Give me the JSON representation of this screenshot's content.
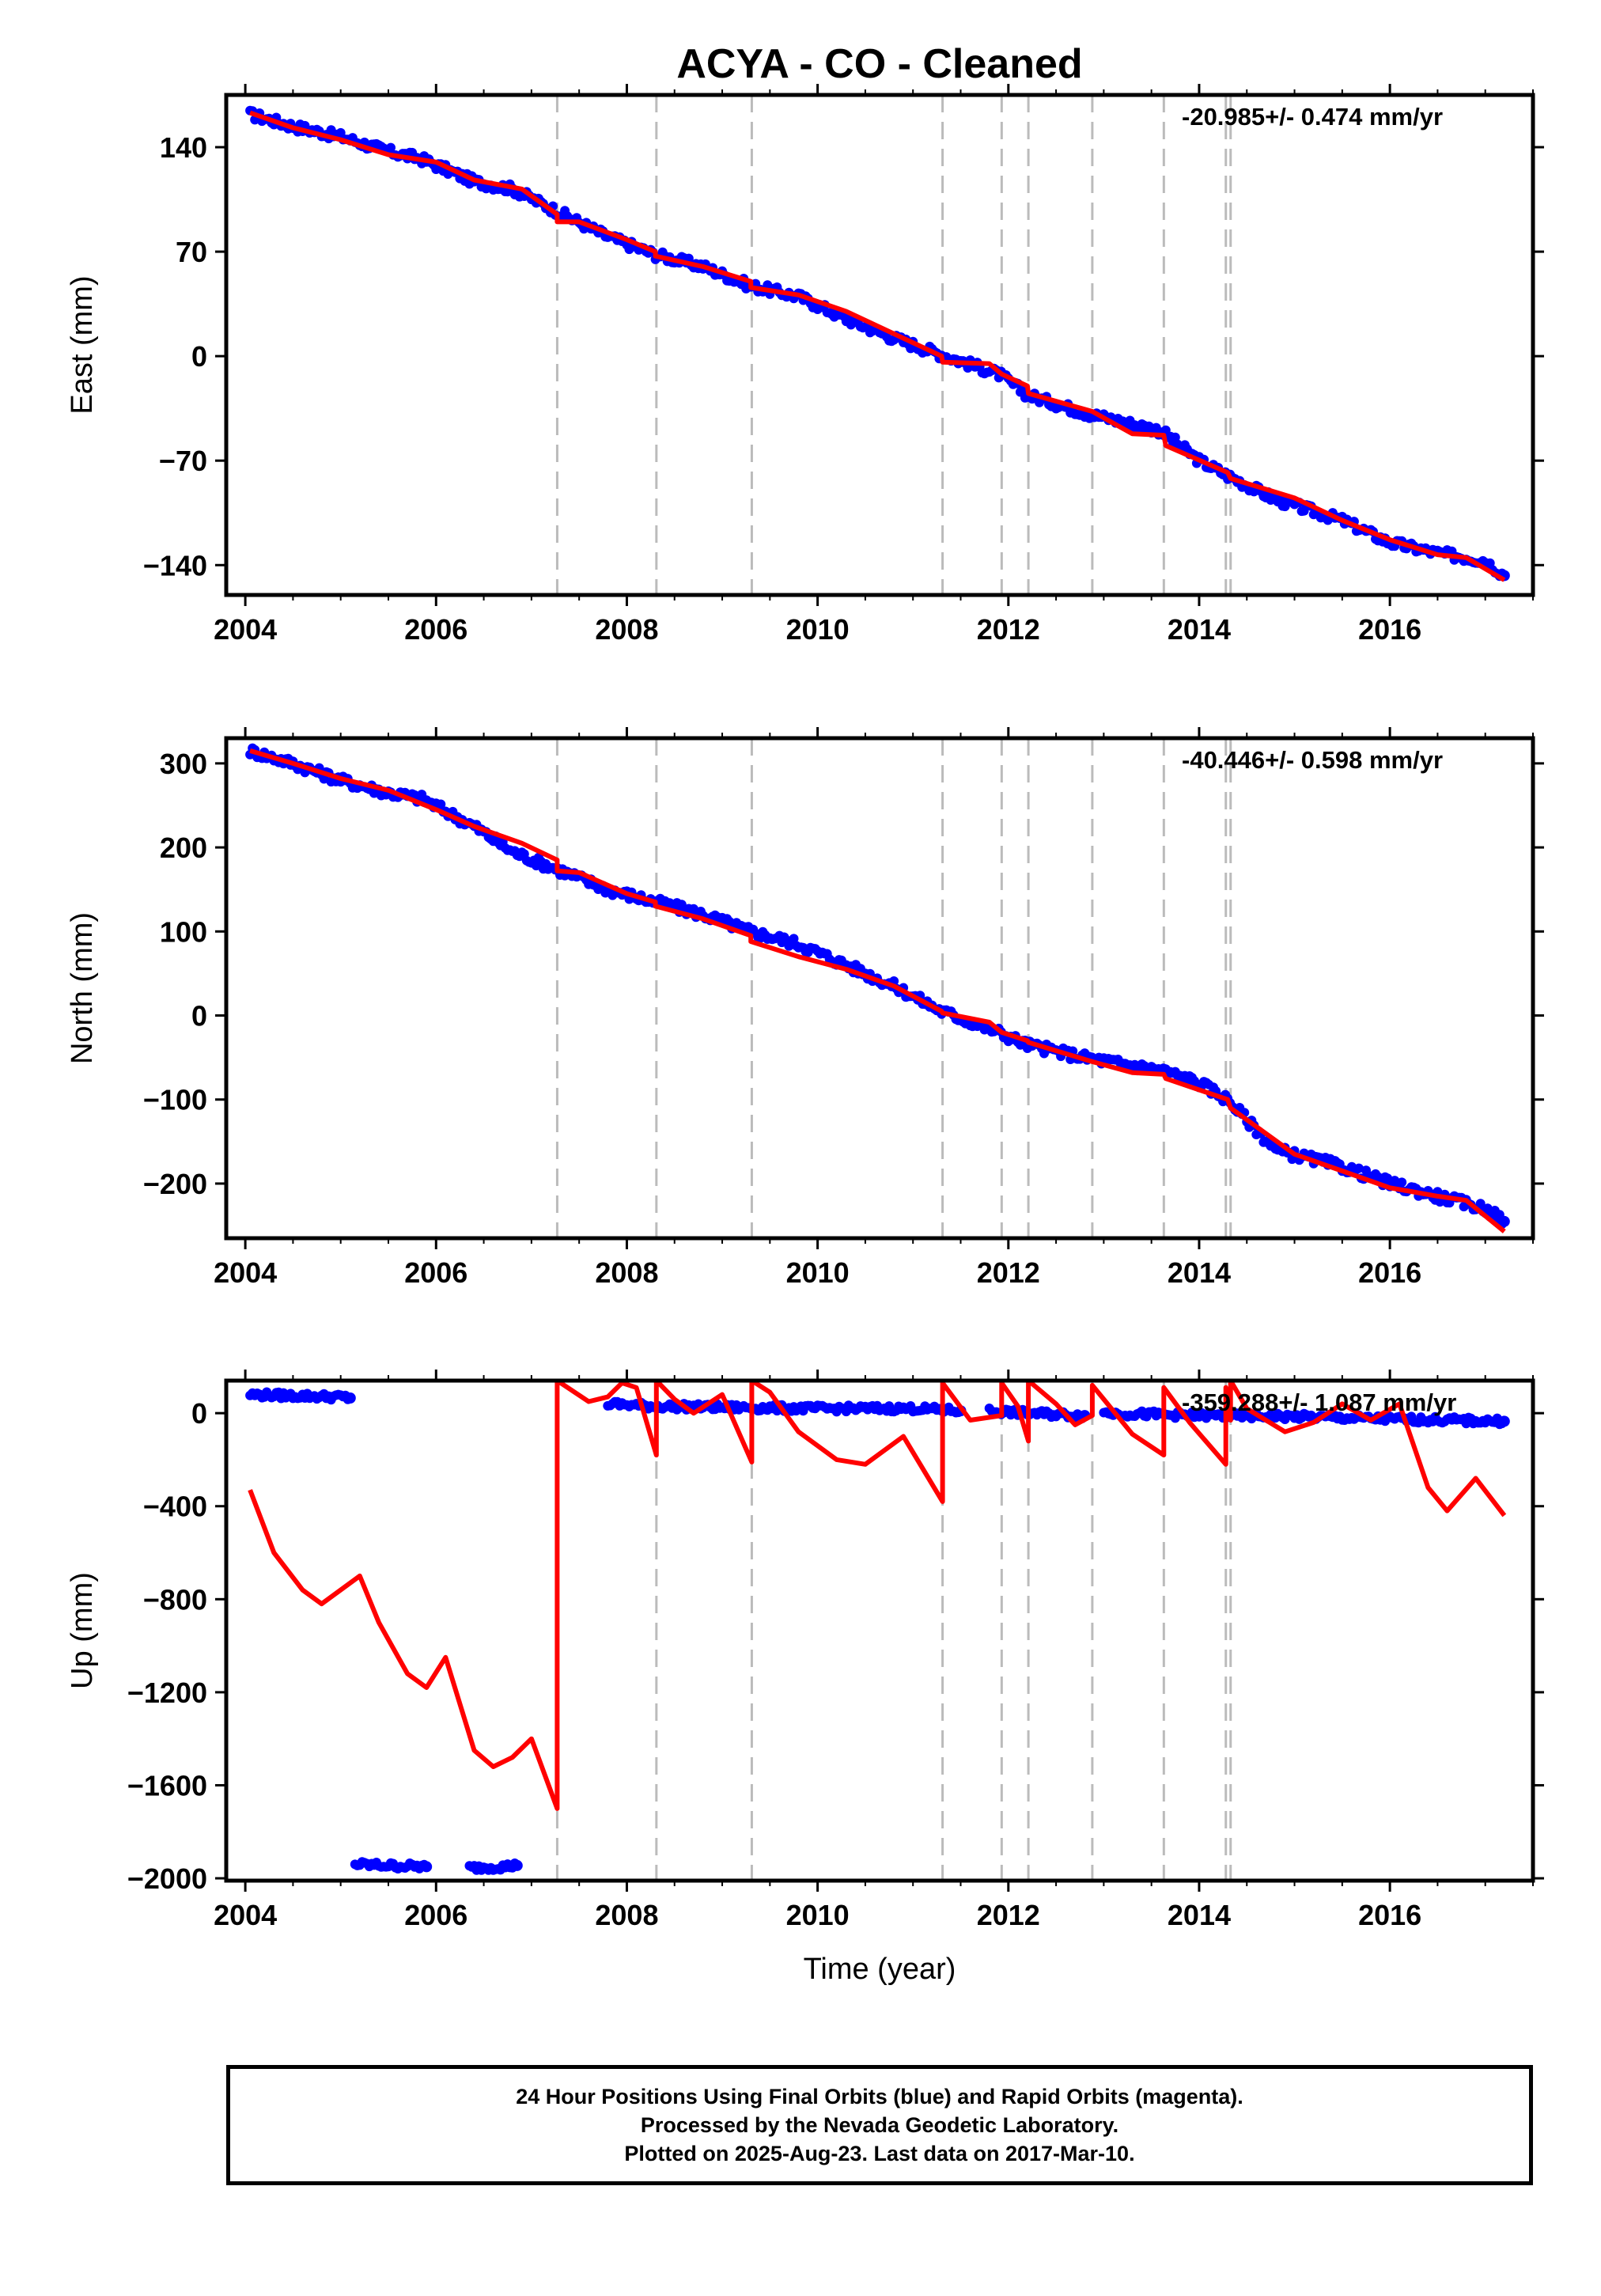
{
  "title": "ACYA  - CO - Cleaned",
  "footer": {
    "line1": "24 Hour Positions Using Final Orbits (blue) and Rapid Orbits (magenta).",
    "line2": "Processed by the Nevada Geodetic Laboratory.",
    "line3": "Plotted on 2025-Aug-23. Last data on 2017-Mar-10."
  },
  "colors": {
    "observations": "#0000ff",
    "model": "#ff0000",
    "steps": "#bbbbbb",
    "frame": "#000000"
  },
  "chart_data": [
    {
      "type": "scatter",
      "ylabel": "East (mm)",
      "xlabel": "",
      "rate_label": "-20.985+/- 0.474 mm/yr",
      "xlim": [
        2003.8,
        2017.5
      ],
      "ylim": [
        -160,
        175
      ],
      "xticks": [
        2004,
        2006,
        2008,
        2010,
        2012,
        2014,
        2016
      ],
      "yticks": [
        140,
        70,
        0,
        -70,
        -140
      ],
      "ytick_labels": [
        "140",
        "70",
        "0",
        "−70",
        "−140"
      ],
      "grid": false,
      "step_epochs": [
        2007.27,
        2008.31,
        2009.31,
        2011.31,
        2011.93,
        2012.21,
        2012.88,
        2013.63,
        2014.28,
        2014.33
      ],
      "series": [
        {
          "role": "observations",
          "x": [
            2004.05,
            2004.5,
            2005.0,
            2005.5,
            2005.85,
            2006.4,
            2006.8,
            2007.8,
            2008.3,
            2008.8,
            2009.3,
            2009.8,
            2010.3,
            2010.8,
            2011.3,
            2011.9,
            2012.2,
            2012.8,
            2013.6,
            2014.0,
            2014.3,
            2014.8,
            2015.5,
            2016.0,
            2016.5,
            2017.0,
            2017.2
          ],
          "y": [
            162,
            154,
            147,
            137,
            132,
            117,
            112,
            80,
            68,
            60,
            47,
            40,
            25,
            12,
            1,
            -12,
            -26,
            -38,
            -50,
            -70,
            -80,
            -96,
            -110,
            -125,
            -132,
            -137,
            -147
          ]
        },
        {
          "role": "model",
          "x": [
            2004.05,
            2004.5,
            2005.0,
            2005.5,
            2006.0,
            2006.4,
            2006.9,
            2007.27,
            2007.27,
            2007.5,
            2008.0,
            2008.3,
            2008.3,
            2008.8,
            2009.3,
            2009.3,
            2009.8,
            2010.3,
            2010.8,
            2011.3,
            2011.31,
            2011.8,
            2011.93,
            2012.2,
            2012.21,
            2012.88,
            2013.3,
            2013.63,
            2013.65,
            2014.3,
            2014.33,
            2015.0,
            2015.5,
            2016.0,
            2016.5,
            2016.8,
            2017.2
          ],
          "y": [
            163,
            153,
            145,
            135,
            130,
            118,
            112,
            95,
            90,
            90,
            78,
            70,
            67,
            60,
            50,
            46,
            41,
            30,
            15,
            0,
            -4,
            -5,
            -12,
            -20,
            -25,
            -37,
            -52,
            -53,
            -60,
            -78,
            -82,
            -95,
            -110,
            -123,
            -133,
            -135,
            -150
          ]
        }
      ]
    },
    {
      "type": "scatter",
      "ylabel": "North (mm)",
      "xlabel": "",
      "rate_label": "-40.446+/- 0.598 mm/yr",
      "xlim": [
        2003.8,
        2017.5
      ],
      "ylim": [
        -265,
        330
      ],
      "xticks": [
        2004,
        2006,
        2008,
        2010,
        2012,
        2014,
        2016
      ],
      "yticks": [
        300,
        200,
        100,
        0,
        -100,
        -200
      ],
      "ytick_labels": [
        "300",
        "200",
        "100",
        "0",
        "−100",
        "−200"
      ],
      "grid": false,
      "step_epochs": [
        2007.27,
        2008.31,
        2009.31,
        2011.31,
        2011.93,
        2012.21,
        2012.88,
        2013.63,
        2014.28,
        2014.33
      ],
      "series": [
        {
          "role": "observations",
          "x": [
            2004.05,
            2004.5,
            2005.0,
            2005.5,
            2005.85,
            2006.4,
            2006.8,
            2007.8,
            2008.3,
            2008.8,
            2009.3,
            2009.8,
            2010.3,
            2010.8,
            2011.3,
            2011.9,
            2012.2,
            2012.8,
            2013.6,
            2014.0,
            2014.3,
            2014.8,
            2015.5,
            2016.0,
            2016.5,
            2017.0,
            2017.2
          ],
          "y": [
            315,
            300,
            280,
            265,
            258,
            225,
            195,
            150,
            135,
            120,
            100,
            85,
            60,
            35,
            5,
            -20,
            -35,
            -50,
            -65,
            -80,
            -100,
            -160,
            -180,
            -200,
            -215,
            -230,
            -245
          ]
        },
        {
          "role": "model",
          "x": [
            2004.05,
            2004.5,
            2005.0,
            2005.5,
            2006.0,
            2006.4,
            2006.9,
            2007.27,
            2007.27,
            2007.5,
            2008.0,
            2008.3,
            2008.3,
            2008.8,
            2009.3,
            2009.3,
            2009.8,
            2010.3,
            2010.8,
            2011.3,
            2011.31,
            2011.8,
            2011.93,
            2012.2,
            2012.21,
            2012.88,
            2013.3,
            2013.63,
            2013.65,
            2014.3,
            2014.33,
            2015.0,
            2015.5,
            2016.0,
            2016.5,
            2016.8,
            2017.2
          ],
          "y": [
            315,
            300,
            282,
            268,
            245,
            225,
            205,
            185,
            172,
            170,
            145,
            135,
            130,
            115,
            95,
            88,
            70,
            55,
            35,
            5,
            3,
            -8,
            -20,
            -30,
            -32,
            -55,
            -68,
            -70,
            -75,
            -100,
            -110,
            -165,
            -185,
            -205,
            -215,
            -220,
            -257
          ]
        }
      ]
    },
    {
      "type": "scatter",
      "ylabel": "Up (mm)",
      "xlabel": "Time (year)",
      "rate_label": "-359.288+/- 1.087 mm/yr",
      "xlim": [
        2003.8,
        2017.5
      ],
      "ylim": [
        -2010,
        140
      ],
      "xticks": [
        2004,
        2006,
        2008,
        2010,
        2012,
        2014,
        2016
      ],
      "yticks": [
        0,
        -400,
        -800,
        -1200,
        -1600,
        -2000
      ],
      "ytick_labels": [
        "0",
        "−400",
        "−800",
        "−1200",
        "−1600",
        "−2000"
      ],
      "grid": false,
      "step_epochs": [
        2007.27,
        2008.31,
        2009.31,
        2011.31,
        2011.93,
        2012.21,
        2012.88,
        2013.63,
        2014.28,
        2014.33
      ],
      "series": [
        {
          "role": "observations",
          "segments": [
            {
              "x": [
                2004.05,
                2004.5,
                2005.0,
                2005.1
              ],
              "y": [
                80,
                75,
                70,
                65
              ]
            },
            {
              "x": [
                2005.15,
                2005.5,
                2005.9
              ],
              "y": [
                -1940,
                -1945,
                -1950
              ]
            },
            {
              "x": [
                2006.35,
                2006.7,
                2006.85
              ],
              "y": [
                -1955,
                -1950,
                -1945
              ]
            },
            {
              "x": [
                2007.8,
                2008.3,
                2009.0,
                2010.0,
                2011.0,
                2011.5
              ],
              "y": [
                40,
                30,
                25,
                20,
                20,
                10
              ]
            },
            {
              "x": [
                2011.8,
                2012.2,
                2012.8
              ],
              "y": [
                10,
                0,
                -10
              ]
            },
            {
              "x": [
                2013.0,
                2014.0,
                2015.0,
                2016.0,
                2017.2
              ],
              "y": [
                0,
                -10,
                -15,
                -25,
                -35
              ]
            }
          ]
        },
        {
          "role": "model",
          "x": [
            2004.05,
            2004.3,
            2004.6,
            2004.8,
            2005.0,
            2005.2,
            2005.4,
            2005.7,
            2005.9,
            2006.1,
            2006.4,
            2006.6,
            2006.8,
            2007.0,
            2007.27,
            2007.27,
            2007.6,
            2007.8,
            2007.95,
            2008.1,
            2008.31,
            2008.31,
            2008.5,
            2008.7,
            2009.0,
            2009.31,
            2009.31,
            2009.5,
            2009.8,
            2010.2,
            2010.5,
            2010.9,
            2011.31,
            2011.31,
            2011.6,
            2011.93,
            2011.93,
            2012.1,
            2012.21,
            2012.21,
            2012.5,
            2012.7,
            2012.88,
            2012.88,
            2013.3,
            2013.63,
            2013.63,
            2013.9,
            2014.28,
            2014.28,
            2014.33,
            2014.33,
            2014.5,
            2014.9,
            2015.2,
            2015.5,
            2015.8,
            2016.1,
            2016.4,
            2016.6,
            2016.9,
            2017.2
          ],
          "y": [
            -330,
            -600,
            -760,
            -820,
            -760,
            -700,
            -900,
            -1120,
            -1180,
            -1050,
            -1450,
            -1520,
            -1480,
            -1400,
            -1700,
            140,
            50,
            70,
            130,
            110,
            -180,
            140,
            60,
            0,
            80,
            -210,
            140,
            90,
            -80,
            -200,
            -220,
            -100,
            -380,
            130,
            -30,
            -10,
            130,
            30,
            -120,
            140,
            40,
            -50,
            -10,
            120,
            -90,
            -180,
            110,
            -40,
            -220,
            110,
            -30,
            140,
            20,
            -80,
            -40,
            40,
            -30,
            40,
            -320,
            -420,
            -280,
            -440
          ]
        }
      ]
    }
  ]
}
